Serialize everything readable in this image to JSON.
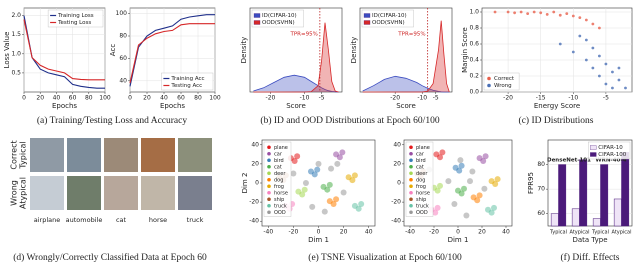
{
  "chart_data": [
    {
      "type": "line",
      "xlabel": "Epochs",
      "ylabel": "Loss Value",
      "legend": "upper right",
      "grid": true,
      "x": [
        0,
        10,
        20,
        30,
        40,
        50,
        60,
        70,
        80,
        90,
        100
      ],
      "xlim": [
        0,
        100
      ],
      "xticks": [
        0,
        20,
        40,
        60,
        80,
        100
      ],
      "ylim": [
        0,
        2.2
      ],
      "yticks": [
        0.5,
        {
          "value": 1,
          "label": "1.0"
        },
        1.5,
        {
          "value": 2,
          "label": "2.0"
        }
      ],
      "series": [
        {
          "name": "Training Loss",
          "color": "#1f2f8a",
          "values": [
            2.0,
            0.9,
            0.6,
            0.5,
            0.45,
            0.4,
            0.2,
            0.15,
            0.12,
            0.1,
            0.1
          ]
        },
        {
          "name": "Testing Loss",
          "color": "#d62728",
          "values": [
            1.9,
            0.9,
            0.7,
            0.6,
            0.55,
            0.5,
            0.35,
            0.33,
            0.32,
            0.32,
            0.32
          ]
        }
      ]
    },
    {
      "type": "line",
      "xlabel": "Epochs",
      "ylabel": "Acc",
      "legend": "lower right",
      "grid": true,
      "x": [
        0,
        10,
        20,
        30,
        40,
        50,
        60,
        70,
        80,
        90,
        100
      ],
      "xlim": [
        0,
        100
      ],
      "xticks": [
        0,
        20,
        40,
        60,
        80,
        100
      ],
      "ylim": [
        30,
        105
      ],
      "yticks": [
        40,
        60,
        80,
        100
      ],
      "series": [
        {
          "name": "Training Acc",
          "color": "#1f2f8a",
          "values": [
            35,
            70,
            80,
            85,
            87,
            89,
            95,
            97,
            98,
            99,
            99
          ]
        },
        {
          "name": "Testing Acc",
          "color": "#d62728",
          "values": [
            38,
            72,
            78,
            82,
            84,
            85,
            90,
            91,
            91,
            91,
            91
          ]
        }
      ]
    },
    {
      "type": "density",
      "xlabel": "Score",
      "ylabel": "Density",
      "legend": "upper left",
      "annotation": "TPR=95%",
      "threshold": -5.5,
      "x": [
        -25,
        -22,
        -19,
        -16,
        -13,
        -10,
        -8,
        -6,
        -5,
        -4,
        -3,
        -2,
        -1,
        0
      ],
      "xlim": [
        -26,
        1
      ],
      "xticks": [
        -20,
        -10,
        -5
      ],
      "ylim": [
        0,
        0.4
      ],
      "series": [
        {
          "name": "ID(CIFAR-10)",
          "color": "#3b4cc0",
          "values": [
            0.005,
            0.02,
            0.045,
            0.07,
            0.08,
            0.07,
            0.05,
            0.03,
            0.02,
            0.012,
            0.006,
            0.003,
            0.001,
            0
          ]
        },
        {
          "name": "OOD(SVHN)",
          "color": "#d62728",
          "values": [
            0,
            0,
            0,
            0,
            0,
            0,
            0.002,
            0.03,
            0.15,
            0.33,
            0.2,
            0.05,
            0.005,
            0
          ]
        }
      ]
    },
    {
      "type": "density",
      "xlabel": "Score",
      "ylabel": "Density",
      "legend": "upper left",
      "annotation": "TPR=95%",
      "threshold": -8,
      "x": [
        -32,
        -28,
        -24,
        -20,
        -16,
        -12,
        -10,
        -8,
        -6,
        -4,
        -3,
        -2,
        -1,
        0
      ],
      "xlim": [
        -33,
        1
      ],
      "xticks": [
        -20,
        -10,
        -5
      ],
      "ylim": [
        0,
        0.4
      ],
      "series": [
        {
          "name": "ID(CIFAR-10)",
          "color": "#3b4cc0",
          "values": [
            0.005,
            0.03,
            0.06,
            0.075,
            0.065,
            0.045,
            0.03,
            0.018,
            0.008,
            0.003,
            0.001,
            0,
            0,
            0
          ]
        },
        {
          "name": "OOD(SVHN)",
          "color": "#d62728",
          "values": [
            0,
            0,
            0,
            0,
            0,
            0,
            0,
            0.004,
            0.04,
            0.2,
            0.34,
            0.18,
            0.04,
            0
          ]
        }
      ]
    },
    {
      "type": "scatter",
      "xlabel": "Energy Score",
      "ylabel": "Margin Score",
      "legend": "lower left",
      "grid": true,
      "xlim": [
        -24,
        -1
      ],
      "xticks": [
        -20,
        -15,
        -10,
        -5
      ],
      "ylim": [
        0,
        1.05
      ],
      "yticks": [
        {
          "value": 0,
          "label": "0.0"
        },
        0.2,
        0.4,
        0.6,
        0.8,
        {
          "value": 1,
          "label": "1.0"
        }
      ],
      "series": [
        {
          "name": "Correct",
          "color": "#e8604c",
          "x": [
            -22,
            -20,
            -19,
            -18,
            -17,
            -16,
            -15,
            -14,
            -13,
            -12,
            -11,
            -10,
            -9,
            -8,
            -7,
            -6
          ],
          "values": [
            1.0,
            1.0,
            0.99,
            1.0,
            0.98,
            1.0,
            0.99,
            0.97,
            1.0,
            0.96,
            0.98,
            0.95,
            0.93,
            0.9,
            0.85,
            0.8
          ]
        },
        {
          "name": "Wrong",
          "color": "#4a6fb5",
          "x": [
            -12,
            -10,
            -9,
            -8,
            -7,
            -7,
            -6,
            -6,
            -5,
            -5,
            -4,
            -4,
            -3,
            -3,
            -2,
            -8
          ],
          "values": [
            0.6,
            0.5,
            0.7,
            0.4,
            0.3,
            0.55,
            0.2,
            0.45,
            0.1,
            0.35,
            0.05,
            0.25,
            0.15,
            0.3,
            0.05,
            0.65
          ]
        }
      ]
    },
    {
      "type": "scatter",
      "xlabel": "Dim 1",
      "ylabel": "Dim 2",
      "legend": "upper left",
      "xlim": [
        -45,
        45
      ],
      "xticks": [
        -40,
        -20,
        0,
        20,
        40
      ],
      "ylim": [
        -45,
        45
      ],
      "yticks": [
        -40,
        -20,
        0,
        20,
        40
      ],
      "series": [
        {
          "name": "plane",
          "color": "#e41a1c",
          "x": [
            -22,
            -19,
            -17
          ],
          "values": [
            26,
            23,
            28
          ]
        },
        {
          "name": "car",
          "color": "#984ea3",
          "x": [
            14,
            17,
            19
          ],
          "values": [
            30,
            27,
            32
          ]
        },
        {
          "name": "bird",
          "color": "#377eb8",
          "x": [
            -6,
            -3,
            -1
          ],
          "values": [
            12,
            9,
            14
          ]
        },
        {
          "name": "cat",
          "color": "#4daf4a",
          "x": [
            4,
            7,
            9
          ],
          "values": [
            -4,
            -7,
            -2
          ]
        },
        {
          "name": "deer",
          "color": "#a6d854",
          "x": [
            -16,
            -13,
            -11
          ],
          "values": [
            -9,
            -12,
            -7
          ]
        },
        {
          "name": "dog",
          "color": "#ff7f00",
          "x": [
            9,
            12,
            14
          ],
          "values": [
            -19,
            -22,
            -17
          ]
        },
        {
          "name": "frog",
          "color": "#e6ab02",
          "x": [
            24,
            27,
            29
          ],
          "values": [
            6,
            3,
            8
          ]
        },
        {
          "name": "horse",
          "color": "#f781bf",
          "x": [
            -26,
            -23,
            -21
          ],
          "values": [
            -24,
            -27,
            -22
          ]
        },
        {
          "name": "ship",
          "color": "#a65628",
          "x": [
            -31,
            -28,
            -26
          ],
          "values": [
            6,
            3,
            8
          ]
        },
        {
          "name": "truck",
          "color": "#66c2a5",
          "x": [
            29,
            32,
            34
          ],
          "values": [
            -24,
            -27,
            -22
          ]
        },
        {
          "name": "OOD",
          "color": "#999999",
          "x": [
            -10,
            0,
            10,
            20,
            -20,
            5,
            -5,
            15
          ],
          "values": [
            0,
            20,
            15,
            -10,
            10,
            -30,
            -25,
            20
          ]
        }
      ]
    },
    {
      "type": "scatter",
      "xlabel": "Dim 1",
      "legend": "upper left",
      "xlim": [
        -45,
        45
      ],
      "xticks": [
        -40,
        -20,
        0,
        20,
        40
      ],
      "ylim": [
        -45,
        45
      ],
      "yticks": [
        -40,
        -20,
        0,
        20,
        40
      ],
      "series": [
        {
          "name": "plane",
          "color": "#e41a1c",
          "x": [
            -18,
            -15,
            -13
          ],
          "values": [
            30,
            27,
            32
          ]
        },
        {
          "name": "car",
          "color": "#984ea3",
          "x": [
            18,
            21,
            23
          ],
          "values": [
            26,
            23,
            28
          ]
        },
        {
          "name": "bird",
          "color": "#377eb8",
          "x": [
            -2,
            1,
            3
          ],
          "values": [
            16,
            13,
            18
          ]
        },
        {
          "name": "cat",
          "color": "#4daf4a",
          "x": [
            0,
            3,
            5
          ],
          "values": [
            -8,
            -11,
            -6
          ]
        },
        {
          "name": "deer",
          "color": "#a6d854",
          "x": [
            -20,
            -17,
            -15
          ],
          "values": [
            -5,
            -8,
            -3
          ]
        },
        {
          "name": "dog",
          "color": "#ff7f00",
          "x": [
            13,
            16,
            18
          ],
          "values": [
            -15,
            -18,
            -13
          ]
        },
        {
          "name": "frog",
          "color": "#e6ab02",
          "x": [
            28,
            31,
            33
          ],
          "values": [
            2,
            -1,
            4
          ]
        },
        {
          "name": "horse",
          "color": "#f781bf",
          "x": [
            -22,
            -19,
            -17
          ],
          "values": [
            -28,
            -31,
            -26
          ]
        },
        {
          "name": "ship",
          "color": "#a65628",
          "x": [
            -34,
            -31,
            -29
          ],
          "values": [
            10,
            7,
            12
          ]
        },
        {
          "name": "truck",
          "color": "#66c2a5",
          "x": [
            25,
            28,
            30
          ],
          "values": [
            -28,
            -31,
            -26
          ]
        },
        {
          "name": "OOD",
          "color": "#999999",
          "x": [
            -8,
            2,
            12,
            22,
            -24,
            7,
            -3,
            10
          ],
          "values": [
            2,
            24,
            12,
            -6,
            14,
            -34,
            -22,
            2
          ]
        }
      ]
    },
    {
      "type": "bar",
      "xlabel": "Data Type",
      "ylabel": "FPR95",
      "legend": "upper right",
      "grid": true,
      "groups": [
        "DenseNet-101",
        "WRN-40-4"
      ],
      "categories": [
        "Typical",
        "Atypical",
        "Typical",
        "Atypical"
      ],
      "ylim": [
        55,
        90
      ],
      "yticks": [
        60,
        70,
        80
      ],
      "series": [
        {
          "name": "CIFAR-10",
          "color": "#efe4f7",
          "values": [
            60,
            62,
            58,
            66
          ]
        },
        {
          "name": "CIFAR-100",
          "color": "#4b1a7a",
          "values": [
            80,
            82,
            80,
            85
          ]
        }
      ]
    }
  ],
  "image_grid": {
    "row_labels": [
      [
        "Correct",
        "Typical"
      ],
      [
        "Wrong",
        "Atypical"
      ]
    ],
    "column_labels": [
      "airplane",
      "automobile",
      "cat",
      "horse",
      "truck"
    ]
  },
  "captions": [
    "(a) Training/Testing Loss and Accuracy",
    "(b) ID and OOD Distributions at Epoch 60/100",
    "(c) ID Distributions",
    "(d) Wrongly/Correctly Classified Data at Epoch 60",
    "(e) TSNE Visualization at Epoch 60/100",
    "(f) Diff. Effects"
  ]
}
